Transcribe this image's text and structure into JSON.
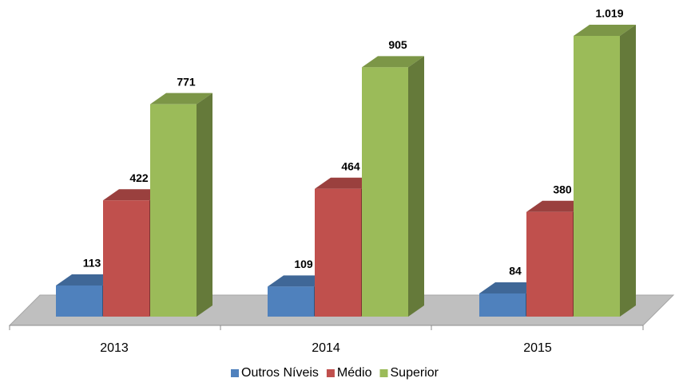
{
  "chart_data": {
    "type": "bar3d",
    "categories": [
      "2013",
      "2014",
      "2015"
    ],
    "series": [
      {
        "name": "Outros Níveis",
        "color": "#4f81bd",
        "values": [
          113,
          109,
          84
        ]
      },
      {
        "name": "Médio",
        "color": "#c0504d",
        "values": [
          422,
          464,
          380
        ]
      },
      {
        "name": "Superior",
        "color": "#9bbb59",
        "values": [
          771,
          905,
          1019
        ],
        "value_labels": [
          "771",
          "905",
          "1.019"
        ]
      }
    ],
    "legend": "bottom"
  }
}
